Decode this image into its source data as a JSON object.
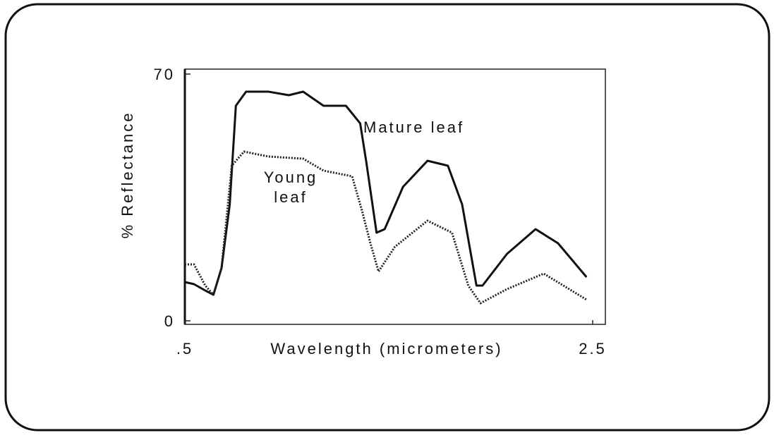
{
  "chart_data": {
    "type": "line",
    "x_label": "Wavelength (micrometers)",
    "y_label": "% Reflectance",
    "xlim": [
      0.5,
      2.5
    ],
    "ylim": [
      0,
      70
    ],
    "xticks": [
      {
        "value": 0.5,
        "label": ".5"
      },
      {
        "value": 2.5,
        "label": "2.5"
      }
    ],
    "yticks": [
      0,
      70
    ],
    "series": [
      {
        "name": "Mature leaf",
        "color": "#111111",
        "style": "solid",
        "x": [
          0.5,
          0.545,
          0.6,
          0.64,
          0.68,
          0.72,
          0.75,
          0.8,
          0.91,
          1.01,
          1.08,
          1.18,
          1.29,
          1.36,
          1.39,
          1.44,
          1.48,
          1.57,
          1.69,
          1.79,
          1.86,
          1.93,
          1.96,
          2.08,
          2.22,
          2.33,
          2.47
        ],
        "values": [
          11,
          10.4,
          8.6,
          7.4,
          15,
          33,
          61,
          65,
          65,
          64,
          65,
          61,
          61,
          56,
          45,
          25,
          26,
          38,
          45.4,
          44,
          33,
          10,
          10,
          19,
          26,
          22,
          12.4
        ]
      },
      {
        "name": "Young leaf",
        "color": "#222222",
        "style": "dotted",
        "x": [
          0.5,
          0.545,
          0.6,
          0.64,
          0.68,
          0.73,
          0.79,
          0.91,
          1.08,
          1.18,
          1.32,
          1.37,
          1.41,
          1.45,
          1.53,
          1.69,
          1.81,
          1.89,
          1.95,
          2.08,
          2.26,
          2.47
        ],
        "values": [
          16,
          16,
          10,
          7.4,
          15,
          44,
          48,
          46.6,
          46,
          42.6,
          41,
          31,
          22,
          14,
          21,
          28.4,
          25,
          10,
          5,
          9,
          13.4,
          6
        ]
      }
    ]
  }
}
